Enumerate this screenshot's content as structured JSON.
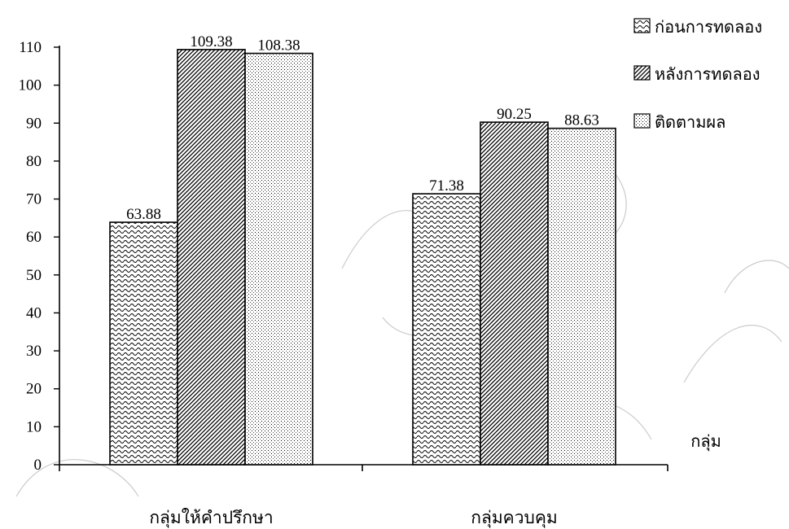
{
  "chart_data": {
    "type": "bar",
    "categories": [
      "กลุ่มให้คำปรึกษา",
      "กลุ่มควบคุม"
    ],
    "series": [
      {
        "name": "ก่อนการทดลอง",
        "values": [
          63.88,
          71.38
        ],
        "pattern": "wave"
      },
      {
        "name": "หลังการทดลอง",
        "values": [
          109.38,
          90.25
        ],
        "pattern": "diagonal"
      },
      {
        "name": "ติดตามผล",
        "values": [
          108.38,
          88.63
        ],
        "pattern": "dots"
      }
    ],
    "data_labels": [
      [
        "63.88",
        "71.38"
      ],
      [
        "109.38",
        "90.25"
      ],
      [
        "108.38",
        "88.63"
      ]
    ],
    "xlabel": "กลุ่ม",
    "ylabel": "",
    "ylim": [
      0,
      110
    ],
    "yticks": [
      0,
      10,
      20,
      30,
      40,
      50,
      60,
      70,
      80,
      90,
      100,
      110
    ],
    "grid": false,
    "legend_position": "top-right"
  }
}
